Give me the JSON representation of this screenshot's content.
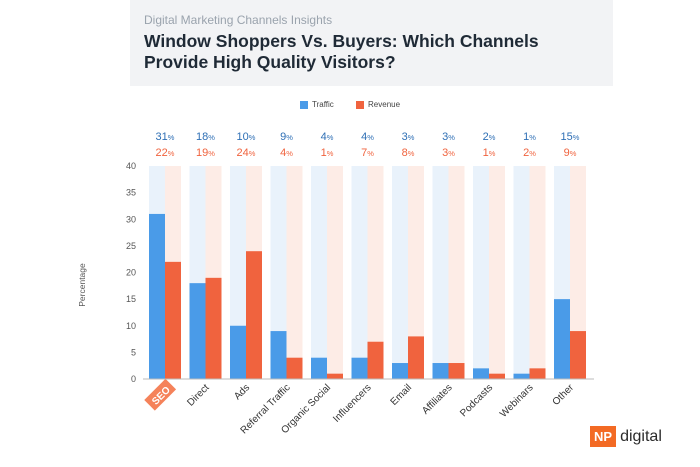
{
  "header": {
    "subtitle": "Digital Marketing Channels Insights",
    "title": "Window Shoppers Vs. Buyers: Which Channels Provide High Quality Visitors?"
  },
  "logo": {
    "box_text": "NP",
    "text": "digital"
  },
  "colors": {
    "traffic": "#4a9be8",
    "revenue": "#f0633e",
    "traffic_bg": "#e9f2fb",
    "revenue_bg": "#fdece6",
    "highlight": "#f5825a"
  },
  "chart_data": {
    "type": "bar",
    "ylabel": "Percentage",
    "xlabel": "",
    "ylim": [
      0,
      40
    ],
    "yticks": [
      0,
      5,
      10,
      15,
      20,
      25,
      30,
      35,
      40
    ],
    "grid": false,
    "legend_position": "top",
    "highlighted_category": "SEO",
    "categories": [
      "SEO",
      "Direct",
      "Ads",
      "Referral Traffic",
      "Organic Social",
      "Influencers",
      "Email",
      "Affiliates",
      "Podcasts",
      "Webinars",
      "Other"
    ],
    "series": [
      {
        "name": "Traffic",
        "values": [
          31,
          18,
          10,
          9,
          4,
          4,
          3,
          3,
          2,
          1,
          15
        ]
      },
      {
        "name": "Revenue",
        "values": [
          22,
          19,
          24,
          4,
          1,
          7,
          8,
          3,
          1,
          2,
          9
        ]
      }
    ],
    "value_suffix": "%"
  }
}
